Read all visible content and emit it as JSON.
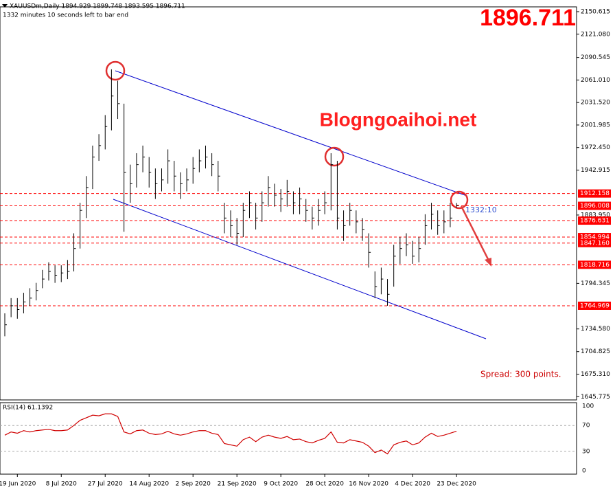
{
  "chart_data": {
    "type": "ohlc",
    "title": "XAUUSDm,Daily 1894.929 1899.748 1893.595 1896.711",
    "subtitle": "1332 minutes 10 seconds left to bar end",
    "price_banner": "1896.711",
    "watermark": "Blogngoaihoi.net",
    "annotation": "Spread: 300 points.",
    "timer": "1332:10",
    "color": "#000000",
    "categories": [
      null,
      null,
      "19 Jun 2020",
      null,
      null,
      null,
      null,
      null,
      null,
      "8 Jul 2020",
      null,
      null,
      null,
      null,
      null,
      null,
      "27 Jul 2020",
      null,
      null,
      null,
      null,
      null,
      null,
      "14 Aug 2020",
      null,
      null,
      null,
      null,
      null,
      null,
      "2 Sep 2020",
      null,
      null,
      null,
      null,
      null,
      null,
      "21 Sep 2020",
      null,
      null,
      null,
      null,
      null,
      null,
      "9 Oct 2020",
      null,
      null,
      null,
      null,
      null,
      null,
      "28 Oct 2020",
      null,
      null,
      null,
      null,
      null,
      null,
      "16 Nov 2020",
      null,
      null,
      null,
      null,
      null,
      null,
      "4 Dec 2020",
      null,
      null,
      null,
      null,
      null,
      null,
      "23 Dec 2020"
    ],
    "high": [
      1755,
      1775,
      1775,
      1782,
      1788,
      1795,
      1812,
      1822,
      1818,
      1818,
      1825,
      1860,
      1900,
      1935,
      1975,
      1990,
      2015,
      2075,
      2060,
      2030,
      1950,
      1965,
      1975,
      1960,
      1945,
      1945,
      1970,
      1955,
      1940,
      1945,
      1960,
      1970,
      1975,
      1965,
      1955,
      1900,
      1890,
      1880,
      1900,
      1915,
      1900,
      1915,
      1935,
      1925,
      1918,
      1930,
      1915,
      1920,
      1905,
      1895,
      1905,
      1915,
      1965,
      1955,
      1890,
      1900,
      1890,
      1880,
      1860,
      1810,
      1815,
      1800,
      1845,
      1855,
      1860,
      1850,
      1855,
      1885,
      1900,
      1890,
      1890,
      1900,
      1899.748
    ],
    "low": [
      1725,
      1750,
      1748,
      1755,
      1765,
      1772,
      1788,
      1798,
      1795,
      1796,
      1800,
      1810,
      1840,
      1880,
      1918,
      1955,
      1970,
      1995,
      2010,
      1862,
      1900,
      1920,
      1940,
      1920,
      1905,
      1915,
      1925,
      1915,
      1905,
      1915,
      1925,
      1940,
      1945,
      1935,
      1915,
      1860,
      1855,
      1845,
      1855,
      1880,
      1865,
      1875,
      1895,
      1895,
      1888,
      1895,
      1885,
      1885,
      1875,
      1865,
      1870,
      1885,
      1890,
      1865,
      1850,
      1870,
      1860,
      1850,
      1815,
      1775,
      1780,
      1765,
      1790,
      1820,
      1830,
      1820,
      1822,
      1845,
      1865,
      1858,
      1860,
      1868,
      1893.595
    ],
    "close": [
      1740,
      1765,
      1760,
      1770,
      1775,
      1785,
      1800,
      1810,
      1805,
      1808,
      1810,
      1840,
      1890,
      1920,
      1960,
      1975,
      2000,
      2040,
      2030,
      1940,
      1925,
      1950,
      1960,
      1940,
      1925,
      1930,
      1955,
      1935,
      1925,
      1930,
      1945,
      1955,
      1960,
      1950,
      1935,
      1880,
      1870,
      1860,
      1890,
      1900,
      1880,
      1900,
      1920,
      1910,
      1905,
      1915,
      1900,
      1905,
      1890,
      1880,
      1890,
      1900,
      1950,
      1880,
      1870,
      1890,
      1875,
      1865,
      1835,
      1790,
      1800,
      1780,
      1830,
      1840,
      1845,
      1830,
      1840,
      1870,
      1885,
      1870,
      1875,
      1880,
      1896.711
    ],
    "ylim": [
      1641.5,
      2156.9
    ],
    "yticks": [
      2150.615,
      {
        "value": 2121.08,
        "label": "2121.080"
      },
      2090.545,
      {
        "value": 2061.01,
        "label": "2061.010"
      },
      {
        "value": 2031.52,
        "label": "2031.520"
      },
      2001.985,
      {
        "value": 1972.45,
        "label": "1972.450"
      },
      1942.915,
      {
        "value": 1883.95,
        "label": "1883.950"
      },
      1794.345,
      {
        "value": 1734.58,
        "label": "1734.580"
      },
      1704.825,
      {
        "value": 1675.31,
        "label": "1675.310"
      },
      1645.775
    ],
    "levels": {
      "values": [
        1912.158,
        {
          "value": 1896.008,
          "label": "1896.008"
        },
        1876.631,
        1854.994,
        {
          "value": 1847.16,
          "label": "1847.160"
        },
        1818.716,
        1764.969
      ],
      "color": "#ff0000"
    },
    "rsi": {
      "label": "RSI(14) 61.1392",
      "color": "#d00000",
      "ylim": [
        0,
        100
      ],
      "yticks": [
        100,
        70,
        30,
        0
      ],
      "values": [
        55,
        60,
        58,
        62,
        60,
        62,
        63,
        64,
        62,
        62,
        63,
        70,
        78,
        82,
        86,
        85,
        88,
        88,
        84,
        60,
        57,
        62,
        63,
        58,
        56,
        57,
        61,
        57,
        55,
        57,
        60,
        62,
        62,
        58,
        56,
        42,
        40,
        38,
        48,
        52,
        45,
        52,
        55,
        52,
        50,
        53,
        48,
        49,
        45,
        43,
        47,
        50,
        60,
        44,
        43,
        48,
        46,
        44,
        38,
        28,
        32,
        26,
        40,
        44,
        46,
        40,
        43,
        52,
        58,
        53,
        55,
        58,
        61.1392
      ]
    }
  }
}
